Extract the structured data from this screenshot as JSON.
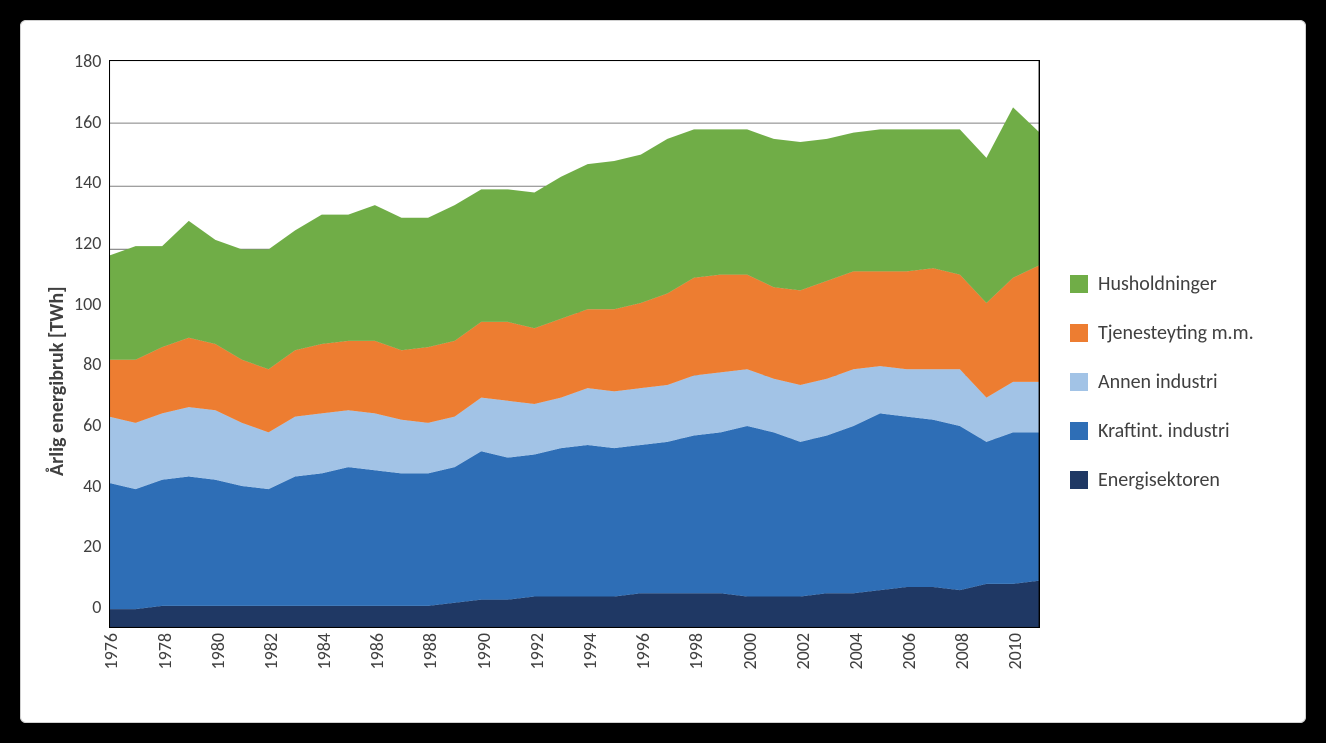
{
  "chart": {
    "type": "stacked-area",
    "y_axis_label": "Årlig energibruk [TWh]",
    "y_axis_label_fontsize": 20,
    "y_axis_label_fontweight": "bold",
    "x_tick_fontsize": 18,
    "y_tick_fontsize": 18,
    "tick_color": "#404040",
    "ylim": [
      0,
      180
    ],
    "ytick_step": 20,
    "y_ticks": [
      0,
      20,
      40,
      60,
      80,
      100,
      120,
      140,
      160,
      180
    ],
    "x_ticks_shown": [
      1976,
      1978,
      1980,
      1982,
      1984,
      1986,
      1988,
      1990,
      1992,
      1994,
      1996,
      1998,
      2000,
      2002,
      2004,
      2006,
      2008,
      2010
    ],
    "x_tick_orientation": "vertical",
    "years": [
      1976,
      1977,
      1978,
      1979,
      1980,
      1981,
      1982,
      1983,
      1984,
      1985,
      1986,
      1987,
      1988,
      1989,
      1990,
      1991,
      1992,
      1993,
      1994,
      1995,
      1996,
      1997,
      1998,
      1999,
      2000,
      2001,
      2002,
      2003,
      2004,
      2005,
      2006,
      2007,
      2008,
      2009,
      2010,
      2011
    ],
    "background_color": "#ffffff",
    "gridline_color": "#808080",
    "border_color": "#000000",
    "card_border_color": "#d0d0d0",
    "page_background": "#000000",
    "series": [
      {
        "label": "Energisektoren",
        "color": "#1f3864",
        "values": [
          6,
          6,
          7,
          7,
          7,
          7,
          7,
          7,
          7,
          7,
          7,
          7,
          7,
          8,
          9,
          9,
          10,
          10,
          10,
          10,
          11,
          11,
          11,
          11,
          10,
          10,
          10,
          11,
          11,
          12,
          13,
          13,
          12,
          14,
          14,
          15
        ]
      },
      {
        "label": "Kraftint. industri",
        "color": "#2e6eb6",
        "values": [
          40,
          38,
          40,
          41,
          40,
          38,
          37,
          41,
          42,
          44,
          43,
          42,
          42,
          43,
          47,
          45,
          45,
          47,
          48,
          47,
          47,
          48,
          50,
          51,
          54,
          52,
          49,
          50,
          53,
          56,
          54,
          53,
          52,
          45,
          48,
          47
        ]
      },
      {
        "label": "Annen industri",
        "color": "#a2c3e6",
        "values": [
          21,
          21,
          21,
          22,
          22,
          20,
          18,
          19,
          19,
          18,
          18,
          17,
          16,
          16,
          17,
          18,
          16,
          16,
          18,
          18,
          18,
          18,
          19,
          19,
          18,
          17,
          18,
          18,
          18,
          15,
          15,
          16,
          18,
          14,
          16,
          16
        ]
      },
      {
        "label": "Tjenesteyting m.m.",
        "color": "#ed7d31",
        "values": [
          18,
          20,
          21,
          22,
          21,
          20,
          20,
          21,
          22,
          22,
          23,
          22,
          24,
          24,
          24,
          25,
          24,
          25,
          25,
          26,
          27,
          29,
          31,
          31,
          30,
          29,
          30,
          31,
          31,
          30,
          31,
          32,
          30,
          30,
          33,
          37
        ]
      },
      {
        "label": "Husholdninger",
        "color": "#70ad47",
        "values": [
          33,
          36,
          32,
          37,
          33,
          35,
          38,
          38,
          41,
          40,
          43,
          42,
          41,
          43,
          42,
          42,
          43,
          45,
          46,
          47,
          47,
          49,
          47,
          46,
          46,
          47,
          47,
          45,
          44,
          45,
          45,
          44,
          46,
          46,
          54,
          42
        ]
      }
    ],
    "legend_order": [
      "Husholdninger",
      "Tjenesteyting m.m.",
      "Annen industri",
      "Kraftint. industri",
      "Energisektoren"
    ],
    "legend_fontsize": 20,
    "legend_swatch_size": 18,
    "legend_gap": 25
  }
}
